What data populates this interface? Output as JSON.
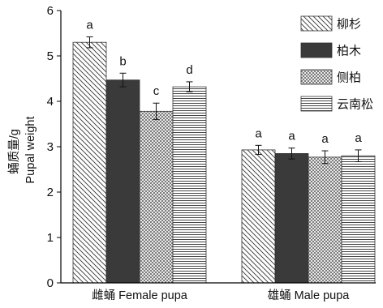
{
  "chart_data": {
    "type": "bar",
    "categories": [
      "雌蛹 Female pupa",
      "雄蛹 Male pupa"
    ],
    "series": [
      {
        "name": "柳杉",
        "values": [
          5.3,
          2.93
        ],
        "errors": [
          0.12,
          0.1
        ],
        "letters": [
          "a",
          "a"
        ],
        "color": "#333333"
      },
      {
        "name": "柏木",
        "values": [
          4.47,
          2.85
        ],
        "errors": [
          0.15,
          0.12
        ],
        "letters": [
          "b",
          "a"
        ],
        "color": "#3a3a3a"
      },
      {
        "name": "侧柏",
        "values": [
          3.78,
          2.77
        ],
        "errors": [
          0.18,
          0.14
        ],
        "letters": [
          "c",
          "a"
        ],
        "color": "#555555"
      },
      {
        "name": "云南松",
        "values": [
          4.32,
          2.8
        ],
        "errors": [
          0.11,
          0.13
        ],
        "letters": [
          "d",
          "a"
        ],
        "color": "#333333"
      }
    ],
    "ylabel": [
      "蛹质量/g",
      "Pupal weight"
    ],
    "ylim": [
      0,
      6
    ],
    "yticks": [
      0,
      1,
      2,
      3,
      4,
      5,
      6
    ],
    "grid": false,
    "legend": "top-right"
  }
}
